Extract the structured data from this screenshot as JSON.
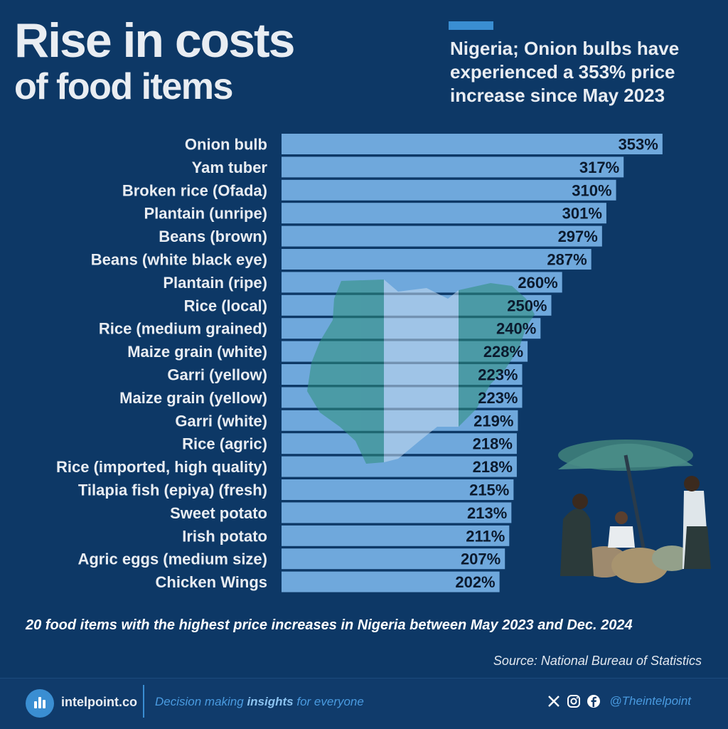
{
  "header": {
    "title_line1": "Rise in costs",
    "title_line2": "of food items",
    "subtitle": "Nigeria; Onion bulbs have experienced a 353% price increase since May 2023"
  },
  "chart_data": {
    "type": "bar",
    "orientation": "horizontal",
    "categories": [
      "Onion bulb",
      "Yam tuber",
      "Broken rice (Ofada)",
      "Plantain (unripe)",
      "Beans (brown)",
      "Beans (white black eye)",
      "Plantain (ripe)",
      "Rice (local)",
      "Rice (medium grained)",
      "Maize grain (white)",
      "Garri (yellow)",
      "Maize grain (yellow)",
      "Garri (white)",
      "Rice (agric)",
      "Rice (imported, high quality)",
      "Tilapia fish (epiya) (fresh)",
      "Sweet potato",
      "Irish potato",
      "Agric eggs (medium size)",
      "Chicken Wings"
    ],
    "values": [
      353,
      317,
      310,
      301,
      297,
      287,
      260,
      250,
      240,
      228,
      223,
      223,
      219,
      218,
      218,
      215,
      213,
      211,
      207,
      202
    ],
    "value_suffix": "%",
    "bar_color": "#6fa8dc",
    "label_color": "#0b1a2e",
    "category_label_color": "#e9edf2"
  },
  "caption": "20 food items with the highest price increases in Nigeria between May 2023 and Dec. 2024",
  "source": "Source: National Bureau of Statistics",
  "footer": {
    "brand": "intelpoint.co",
    "tagline_pre": "Decision making ",
    "tagline_bold": "insights",
    "tagline_post": " for everyone",
    "social_icons": [
      "x-icon",
      "instagram-icon",
      "facebook-icon"
    ],
    "handle": "@Theintelpoint"
  },
  "colors": {
    "background": "#0d3866",
    "accent": "#3a8ed2"
  }
}
